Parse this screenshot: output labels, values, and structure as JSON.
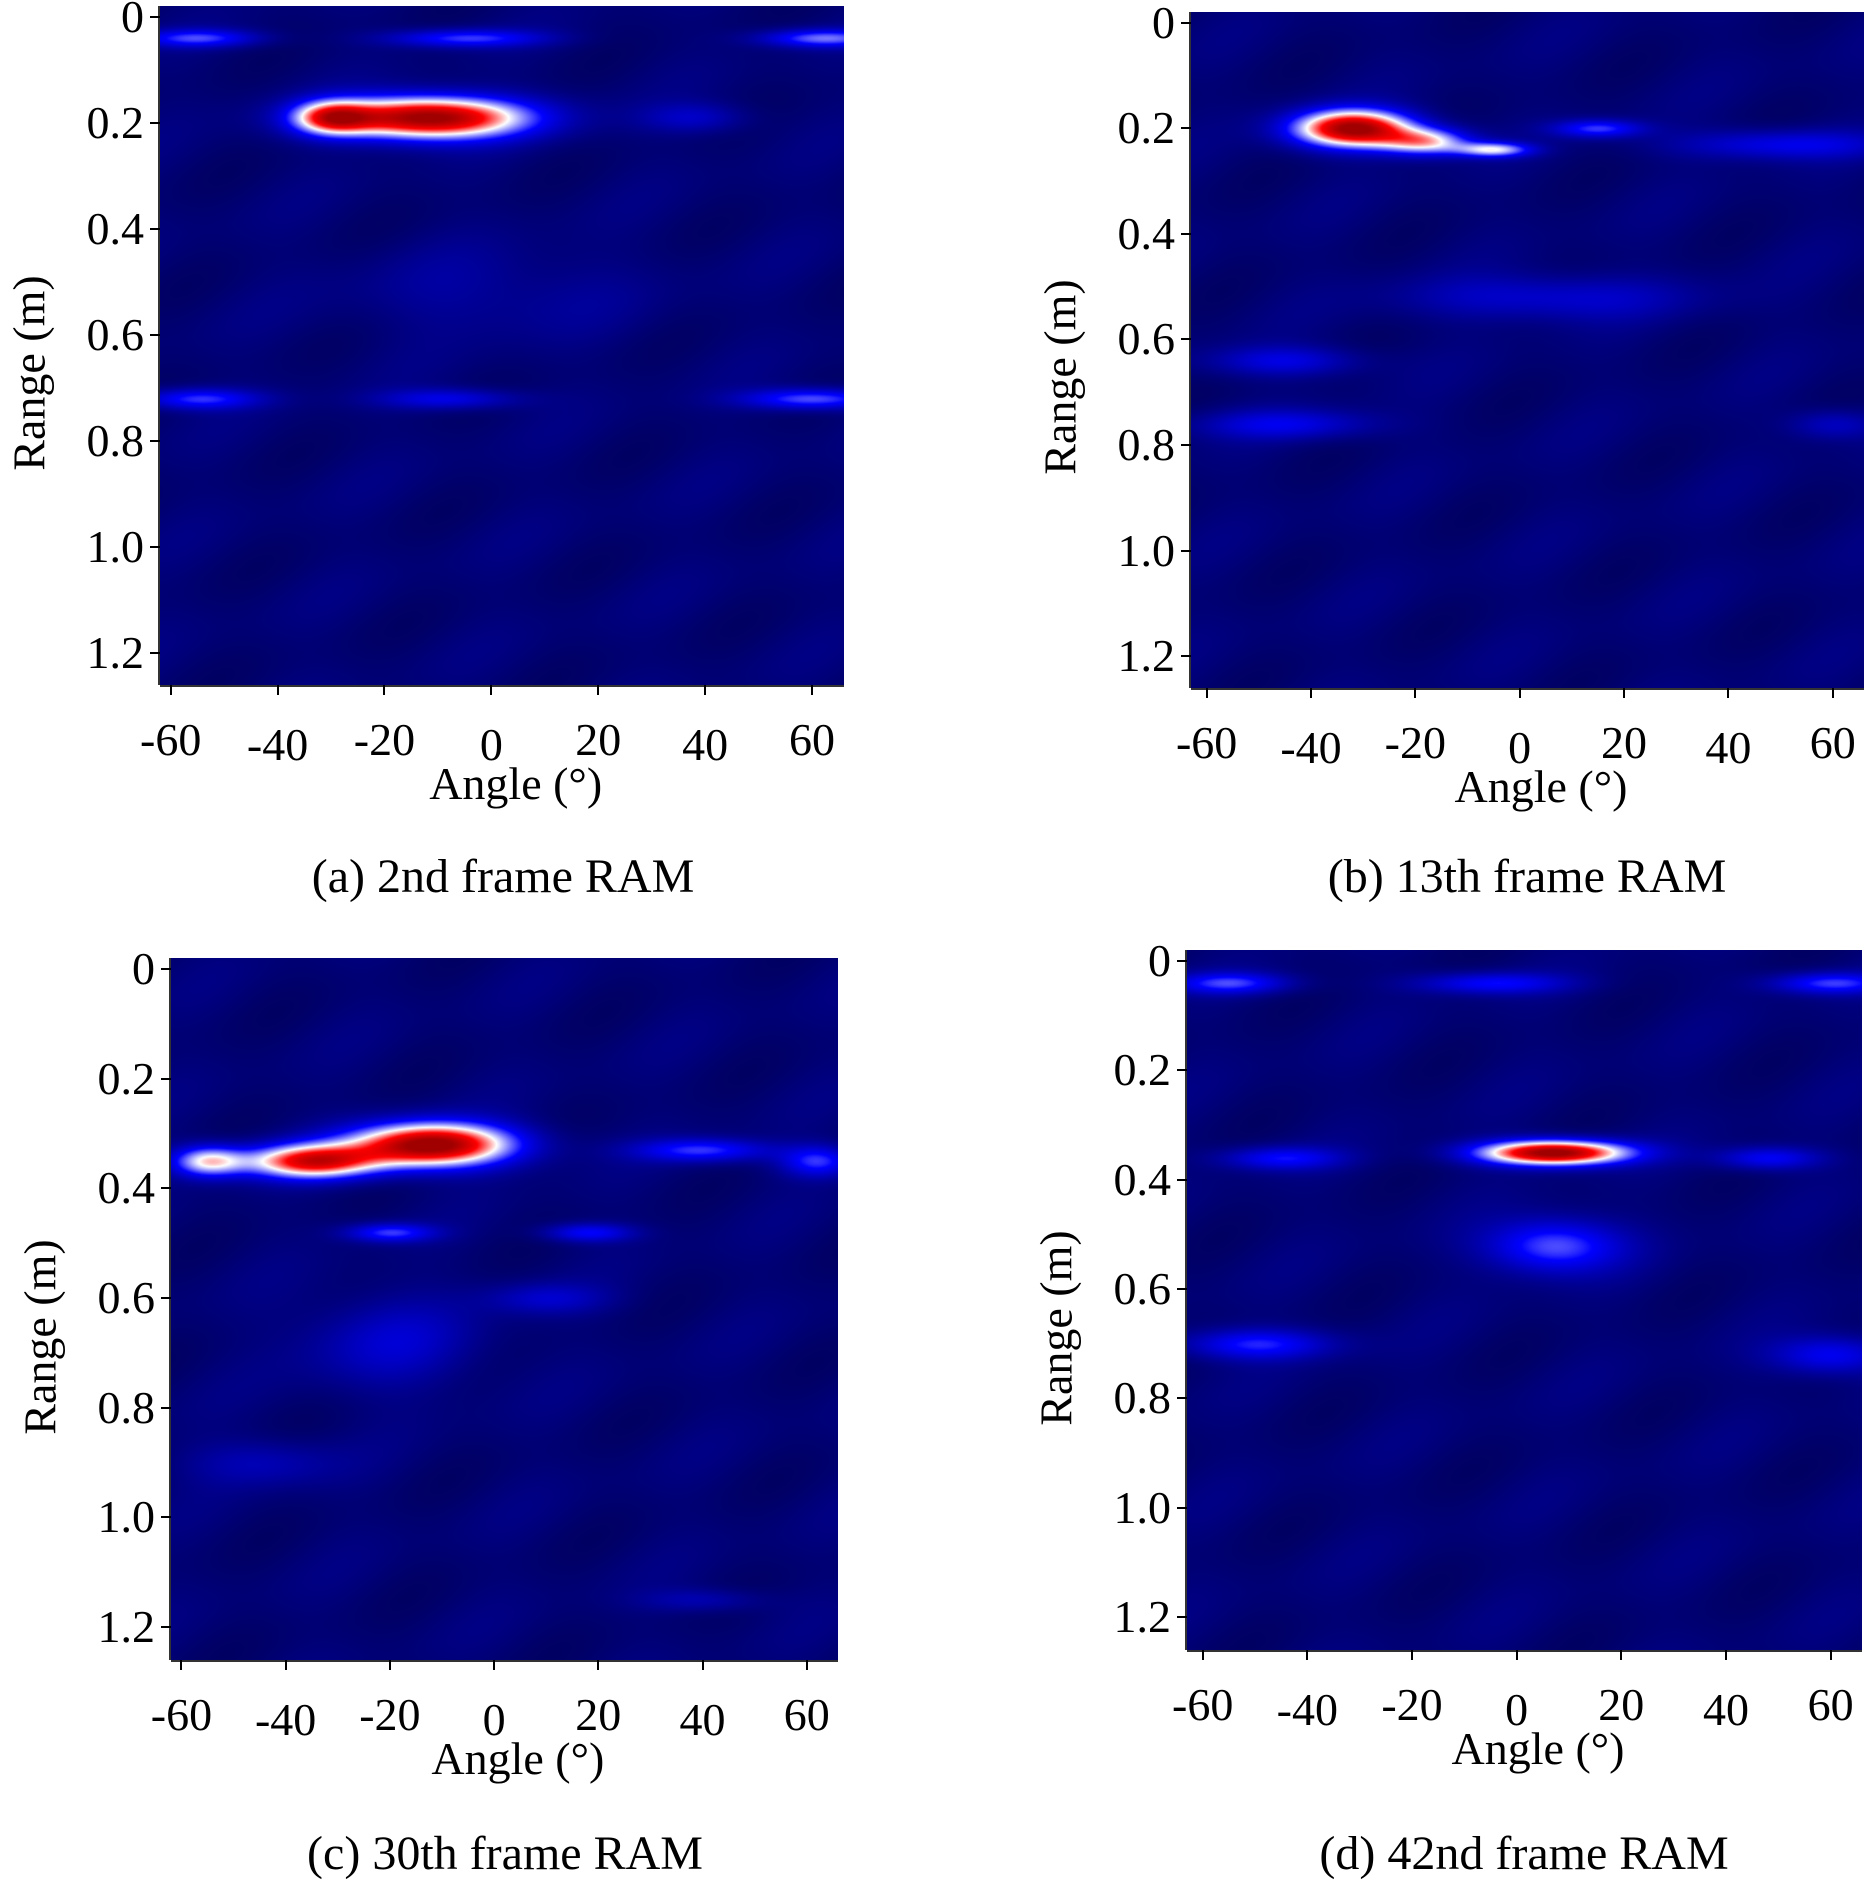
{
  "chart_data": [
    {
      "type": "heatmap",
      "caption": "(a) 2nd frame RAM",
      "xlabel": "Angle (°)",
      "ylabel": "Range (m)",
      "xticks": [
        "-60",
        "-40",
        "-20",
        "0",
        "20",
        "40",
        "60"
      ],
      "yticks": [
        "0",
        "0.2",
        "0.4",
        "0.6",
        "0.8",
        "1.0",
        "1.2"
      ],
      "xlim": [
        -62,
        66
      ],
      "ylim": [
        -0.02,
        1.26
      ],
      "colormap": [
        "#00003c",
        "#0000ff",
        "#ffffff",
        "#ff0000",
        "#a00000"
      ],
      "peaks": [
        {
          "angle": -12,
          "range": 0.19,
          "sa": 13,
          "sr": 0.028,
          "amp": 0.95
        },
        {
          "angle": -30,
          "range": 0.19,
          "sa": 5,
          "sr": 0.022,
          "amp": 0.55
        },
        {
          "angle": -55,
          "range": 0.04,
          "sa": 8,
          "sr": 0.012,
          "amp": 0.3
        },
        {
          "angle": -5,
          "range": 0.04,
          "sa": 10,
          "sr": 0.012,
          "amp": 0.3
        },
        {
          "angle": 62,
          "range": 0.04,
          "sa": 8,
          "sr": 0.012,
          "amp": 0.35
        },
        {
          "angle": -55,
          "range": 0.72,
          "sa": 8,
          "sr": 0.014,
          "amp": 0.3
        },
        {
          "angle": -8,
          "range": 0.72,
          "sa": 9,
          "sr": 0.014,
          "amp": 0.22
        },
        {
          "angle": 60,
          "range": 0.72,
          "sa": 9,
          "sr": 0.014,
          "amp": 0.35
        },
        {
          "angle": 38,
          "range": 0.19,
          "sa": 7,
          "sr": 0.02,
          "amp": 0.15
        },
        {
          "angle": 0,
          "range": 0.52,
          "sa": 18,
          "sr": 0.06,
          "amp": 0.08
        }
      ]
    },
    {
      "type": "heatmap",
      "caption": "(b) 13th frame RAM",
      "xlabel": "Angle (°)",
      "ylabel": "Range (m)",
      "xticks": [
        "-60",
        "-40",
        "-20",
        "0",
        "20",
        "40",
        "60"
      ],
      "yticks": [
        "0",
        "0.2",
        "0.4",
        "0.6",
        "0.8",
        "1.0",
        "1.2"
      ],
      "xlim": [
        -63,
        66
      ],
      "ylim": [
        -0.02,
        1.26
      ],
      "colormap": [
        "#00003c",
        "#0000ff",
        "#ffffff",
        "#ff0000",
        "#a00000"
      ],
      "peaks": [
        {
          "angle": -32,
          "range": 0.2,
          "sa": 8,
          "sr": 0.025,
          "amp": 0.92
        },
        {
          "angle": -18,
          "range": 0.225,
          "sa": 6,
          "sr": 0.018,
          "amp": 0.5
        },
        {
          "angle": -5,
          "range": 0.24,
          "sa": 5,
          "sr": 0.01,
          "amp": 0.45
        },
        {
          "angle": 15,
          "range": 0.2,
          "sa": 6,
          "sr": 0.012,
          "amp": 0.3
        },
        {
          "angle": 50,
          "range": 0.23,
          "sa": 14,
          "sr": 0.02,
          "amp": 0.22
        },
        {
          "angle": 5,
          "range": 0.52,
          "sa": 18,
          "sr": 0.03,
          "amp": 0.18
        },
        {
          "angle": -45,
          "range": 0.64,
          "sa": 10,
          "sr": 0.02,
          "amp": 0.2
        },
        {
          "angle": -45,
          "range": 0.76,
          "sa": 12,
          "sr": 0.02,
          "amp": 0.2
        },
        {
          "angle": 60,
          "range": 0.76,
          "sa": 6,
          "sr": 0.02,
          "amp": 0.15
        }
      ]
    },
    {
      "type": "heatmap",
      "caption": "(c) 30th frame RAM",
      "xlabel": "Angle (°)",
      "ylabel": "Range (m)",
      "xticks": [
        "-60",
        "-40",
        "-20",
        "0",
        "20",
        "40",
        "60"
      ],
      "yticks": [
        "0",
        "0.2",
        "0.4",
        "0.6",
        "0.8",
        "1.0",
        "1.2"
      ],
      "xlim": [
        -62,
        66
      ],
      "ylim": [
        -0.02,
        1.26
      ],
      "colormap": [
        "#00003c",
        "#0000ff",
        "#ffffff",
        "#ff0000",
        "#a00000"
      ],
      "peaks": [
        {
          "angle": -12,
          "range": 0.32,
          "sa": 11,
          "sr": 0.028,
          "amp": 0.95
        },
        {
          "angle": -35,
          "range": 0.35,
          "sa": 9,
          "sr": 0.022,
          "amp": 0.75
        },
        {
          "angle": -55,
          "range": 0.35,
          "sa": 5,
          "sr": 0.02,
          "amp": 0.5
        },
        {
          "angle": 40,
          "range": 0.33,
          "sa": 9,
          "sr": 0.015,
          "amp": 0.3
        },
        {
          "angle": 62,
          "range": 0.35,
          "sa": 5,
          "sr": 0.02,
          "amp": 0.3
        },
        {
          "angle": -20,
          "range": 0.48,
          "sa": 6,
          "sr": 0.012,
          "amp": 0.3
        },
        {
          "angle": 18,
          "range": 0.48,
          "sa": 6,
          "sr": 0.012,
          "amp": 0.25
        },
        {
          "angle": -20,
          "range": 0.68,
          "sa": 12,
          "sr": 0.06,
          "amp": 0.15
        },
        {
          "angle": 10,
          "range": 0.6,
          "sa": 8,
          "sr": 0.02,
          "amp": 0.15
        },
        {
          "angle": -45,
          "range": 0.9,
          "sa": 10,
          "sr": 0.03,
          "amp": 0.12
        },
        {
          "angle": 40,
          "range": 1.15,
          "sa": 8,
          "sr": 0.015,
          "amp": 0.12
        }
      ]
    },
    {
      "type": "heatmap",
      "caption": "(d) 42nd frame RAM",
      "xlabel": "Angle (°)",
      "ylabel": "Range (m)",
      "xticks": [
        "-60",
        "-40",
        "-20",
        "0",
        "20",
        "40",
        "60"
      ],
      "yticks": [
        "0",
        "0.2",
        "0.4",
        "0.6",
        "0.8",
        "1.0",
        "1.2"
      ],
      "xlim": [
        -63,
        66
      ],
      "ylim": [
        -0.02,
        1.26
      ],
      "colormap": [
        "#00003c",
        "#0000ff",
        "#ffffff",
        "#ff0000",
        "#a00000"
      ],
      "peaks": [
        {
          "angle": 7,
          "range": 0.35,
          "sa": 10,
          "sr": 0.016,
          "amp": 0.95
        },
        {
          "angle": 7,
          "range": 0.52,
          "sa": 9,
          "sr": 0.035,
          "amp": 0.35
        },
        {
          "angle": -45,
          "range": 0.36,
          "sa": 8,
          "sr": 0.015,
          "amp": 0.25
        },
        {
          "angle": 48,
          "range": 0.36,
          "sa": 7,
          "sr": 0.015,
          "amp": 0.25
        },
        {
          "angle": -55,
          "range": 0.04,
          "sa": 8,
          "sr": 0.014,
          "amp": 0.3
        },
        {
          "angle": -5,
          "range": 0.04,
          "sa": 10,
          "sr": 0.014,
          "amp": 0.25
        },
        {
          "angle": 60,
          "range": 0.04,
          "sa": 8,
          "sr": 0.014,
          "amp": 0.3
        },
        {
          "angle": -50,
          "range": 0.7,
          "sa": 10,
          "sr": 0.02,
          "amp": 0.28
        },
        {
          "angle": 60,
          "range": 0.72,
          "sa": 8,
          "sr": 0.025,
          "amp": 0.25
        }
      ]
    }
  ]
}
